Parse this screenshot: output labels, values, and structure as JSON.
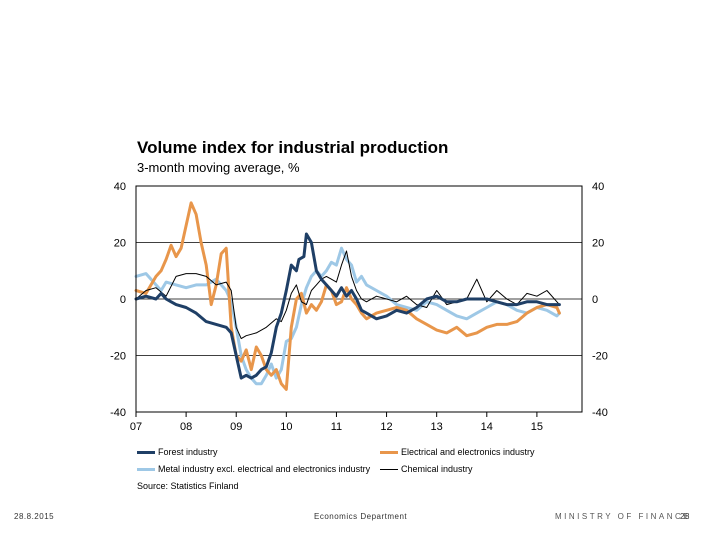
{
  "chart_data": {
    "type": "line",
    "title": "Volume index for industrial production",
    "subtitle": "3-month moving average, %",
    "ylim": [
      -40,
      40
    ],
    "yticks": [
      "40",
      "20",
      "0",
      "-20",
      "-40"
    ],
    "x_range": [
      2007.0,
      2015.9
    ],
    "xtick_labels": [
      "07",
      "08",
      "09",
      "10",
      "11",
      "12",
      "13",
      "14",
      "15"
    ],
    "xtick_values": [
      2007,
      2008,
      2009,
      2010,
      2011,
      2012,
      2013,
      2014,
      2015
    ],
    "grid": true,
    "source": "Source: Statistics Finland",
    "series": [
      {
        "name": "Forest industry",
        "color": "#1f3f66",
        "width": 3,
        "x": [
          2007.0,
          2007.2,
          2007.4,
          2007.5,
          2007.6,
          2007.7,
          2007.8,
          2008.0,
          2008.2,
          2008.4,
          2008.6,
          2008.8,
          2008.9,
          2009.0,
          2009.1,
          2009.2,
          2009.3,
          2009.4,
          2009.5,
          2009.6,
          2009.7,
          2009.8,
          2009.9,
          2010.0,
          2010.1,
          2010.2,
          2010.25,
          2010.35,
          2010.4,
          2010.5,
          2010.6,
          2010.7,
          2010.8,
          2010.9,
          2011.0,
          2011.1,
          2011.2,
          2011.3,
          2011.4,
          2011.5,
          2011.6,
          2011.8,
          2012.0,
          2012.2,
          2012.4,
          2012.6,
          2012.8,
          2013.0,
          2013.2,
          2013.4,
          2013.6,
          2013.8,
          2014.0,
          2014.2,
          2014.4,
          2014.6,
          2014.8,
          2015.0,
          2015.2,
          2015.4,
          2015.45
        ],
        "y": [
          0,
          1,
          0,
          2,
          0,
          -1,
          -2,
          -3,
          -5,
          -8,
          -9,
          -10,
          -12,
          -20,
          -28,
          -27,
          -28,
          -27,
          -25,
          -24,
          -19,
          -10,
          -5,
          3,
          12,
          10,
          14,
          15,
          23,
          20,
          10,
          7,
          5,
          3,
          1,
          4,
          1,
          3,
          0,
          -4,
          -5,
          -7,
          -6,
          -4,
          -5,
          -3,
          0,
          1,
          -1,
          -1,
          0,
          0,
          0,
          -1,
          -2,
          -2,
          -1,
          -1,
          -2,
          -2,
          -2
        ]
      },
      {
        "name": "Electrical and electronics industry",
        "color": "#e8964b",
        "width": 3,
        "x": [
          2007.0,
          2007.2,
          2007.4,
          2007.5,
          2007.6,
          2007.7,
          2007.8,
          2007.9,
          2008.0,
          2008.1,
          2008.2,
          2008.3,
          2008.4,
          2008.5,
          2008.6,
          2008.7,
          2008.8,
          2008.9,
          2009.0,
          2009.1,
          2009.2,
          2009.3,
          2009.4,
          2009.5,
          2009.6,
          2009.7,
          2009.8,
          2009.9,
          2010.0,
          2010.1,
          2010.2,
          2010.3,
          2010.4,
          2010.5,
          2010.6,
          2010.7,
          2010.8,
          2010.9,
          2011.0,
          2011.1,
          2011.2,
          2011.3,
          2011.4,
          2011.5,
          2011.6,
          2011.8,
          2012.0,
          2012.2,
          2012.4,
          2012.6,
          2012.8,
          2013.0,
          2013.2,
          2013.4,
          2013.6,
          2013.8,
          2014.0,
          2014.2,
          2014.4,
          2014.6,
          2014.8,
          2015.0,
          2015.2,
          2015.4,
          2015.45
        ],
        "y": [
          3,
          2,
          8,
          10,
          14,
          19,
          15,
          18,
          26,
          34,
          30,
          20,
          12,
          -2,
          5,
          16,
          18,
          -10,
          -20,
          -22,
          -18,
          -25,
          -17,
          -20,
          -25,
          -27,
          -25,
          -30,
          -32,
          -10,
          0,
          2,
          -5,
          -2,
          -4,
          -1,
          5,
          3,
          -2,
          -1,
          4,
          0,
          -2,
          -5,
          -7,
          -5,
          -4,
          -3,
          -4,
          -7,
          -9,
          -11,
          -12,
          -10,
          -13,
          -12,
          -10,
          -9,
          -9,
          -8,
          -5,
          -3,
          -2,
          -3,
          -5
        ]
      },
      {
        "name": "Metal industry excl. electrical and electronics industry",
        "color": "#9ec8e6",
        "width": 3,
        "x": [
          2007.0,
          2007.2,
          2007.4,
          2007.5,
          2007.6,
          2007.8,
          2008.0,
          2008.2,
          2008.4,
          2008.5,
          2008.6,
          2008.8,
          2008.9,
          2009.0,
          2009.1,
          2009.2,
          2009.3,
          2009.4,
          2009.5,
          2009.6,
          2009.7,
          2009.8,
          2009.9,
          2010.0,
          2010.1,
          2010.2,
          2010.3,
          2010.4,
          2010.5,
          2010.6,
          2010.7,
          2010.8,
          2010.9,
          2011.0,
          2011.1,
          2011.2,
          2011.3,
          2011.4,
          2011.5,
          2011.6,
          2011.8,
          2012.0,
          2012.2,
          2012.4,
          2012.6,
          2012.8,
          2013.0,
          2013.2,
          2013.4,
          2013.6,
          2013.8,
          2014.0,
          2014.2,
          2014.4,
          2014.6,
          2014.8,
          2015.0,
          2015.2,
          2015.4,
          2015.45
        ],
        "y": [
          8,
          9,
          5,
          3,
          6,
          5,
          4,
          5,
          5,
          6,
          7,
          3,
          -1,
          -10,
          -20,
          -25,
          -28,
          -30,
          -30,
          -27,
          -23,
          -28,
          -25,
          -15,
          -14,
          -10,
          -2,
          4,
          8,
          10,
          8,
          10,
          13,
          12,
          18,
          14,
          12,
          6,
          8,
          5,
          3,
          1,
          -2,
          -3,
          -4,
          -1,
          -2,
          -4,
          -6,
          -7,
          -5,
          -3,
          -1,
          -2,
          -4,
          -5,
          -3,
          -4,
          -6,
          -5
        ]
      },
      {
        "name": "Chemical industry",
        "color": "#000000",
        "width": 1,
        "x": [
          2007.0,
          2007.2,
          2007.4,
          2007.6,
          2007.8,
          2008.0,
          2008.2,
          2008.4,
          2008.6,
          2008.8,
          2008.9,
          2009.0,
          2009.1,
          2009.2,
          2009.4,
          2009.6,
          2009.8,
          2009.9,
          2010.0,
          2010.1,
          2010.2,
          2010.3,
          2010.4,
          2010.5,
          2010.6,
          2010.7,
          2010.8,
          2010.9,
          2011.0,
          2011.1,
          2011.2,
          2011.3,
          2011.4,
          2011.5,
          2011.6,
          2011.8,
          2012.0,
          2012.2,
          2012.4,
          2012.6,
          2012.8,
          2013.0,
          2013.2,
          2013.4,
          2013.6,
          2013.8,
          2014.0,
          2014.2,
          2014.4,
          2014.6,
          2014.8,
          2015.0,
          2015.2,
          2015.4,
          2015.45
        ],
        "y": [
          0,
          3,
          4,
          1,
          8,
          9,
          9,
          8,
          5,
          6,
          3,
          -10,
          -14,
          -13,
          -12,
          -10,
          -7,
          -8,
          -4,
          2,
          5,
          -1,
          -2,
          3,
          5,
          7,
          8,
          7,
          6,
          12,
          17,
          8,
          3,
          0,
          -1,
          1,
          0,
          -1,
          1,
          -2,
          -3,
          3,
          -2,
          -1,
          0,
          7,
          -1,
          3,
          0,
          -2,
          2,
          1,
          3,
          -1,
          -2
        ]
      }
    ]
  },
  "footer": {
    "date": "28.8.2015",
    "department": "Economics Department",
    "ministry": "MINISTRY OF FINANCE",
    "page": "28"
  }
}
